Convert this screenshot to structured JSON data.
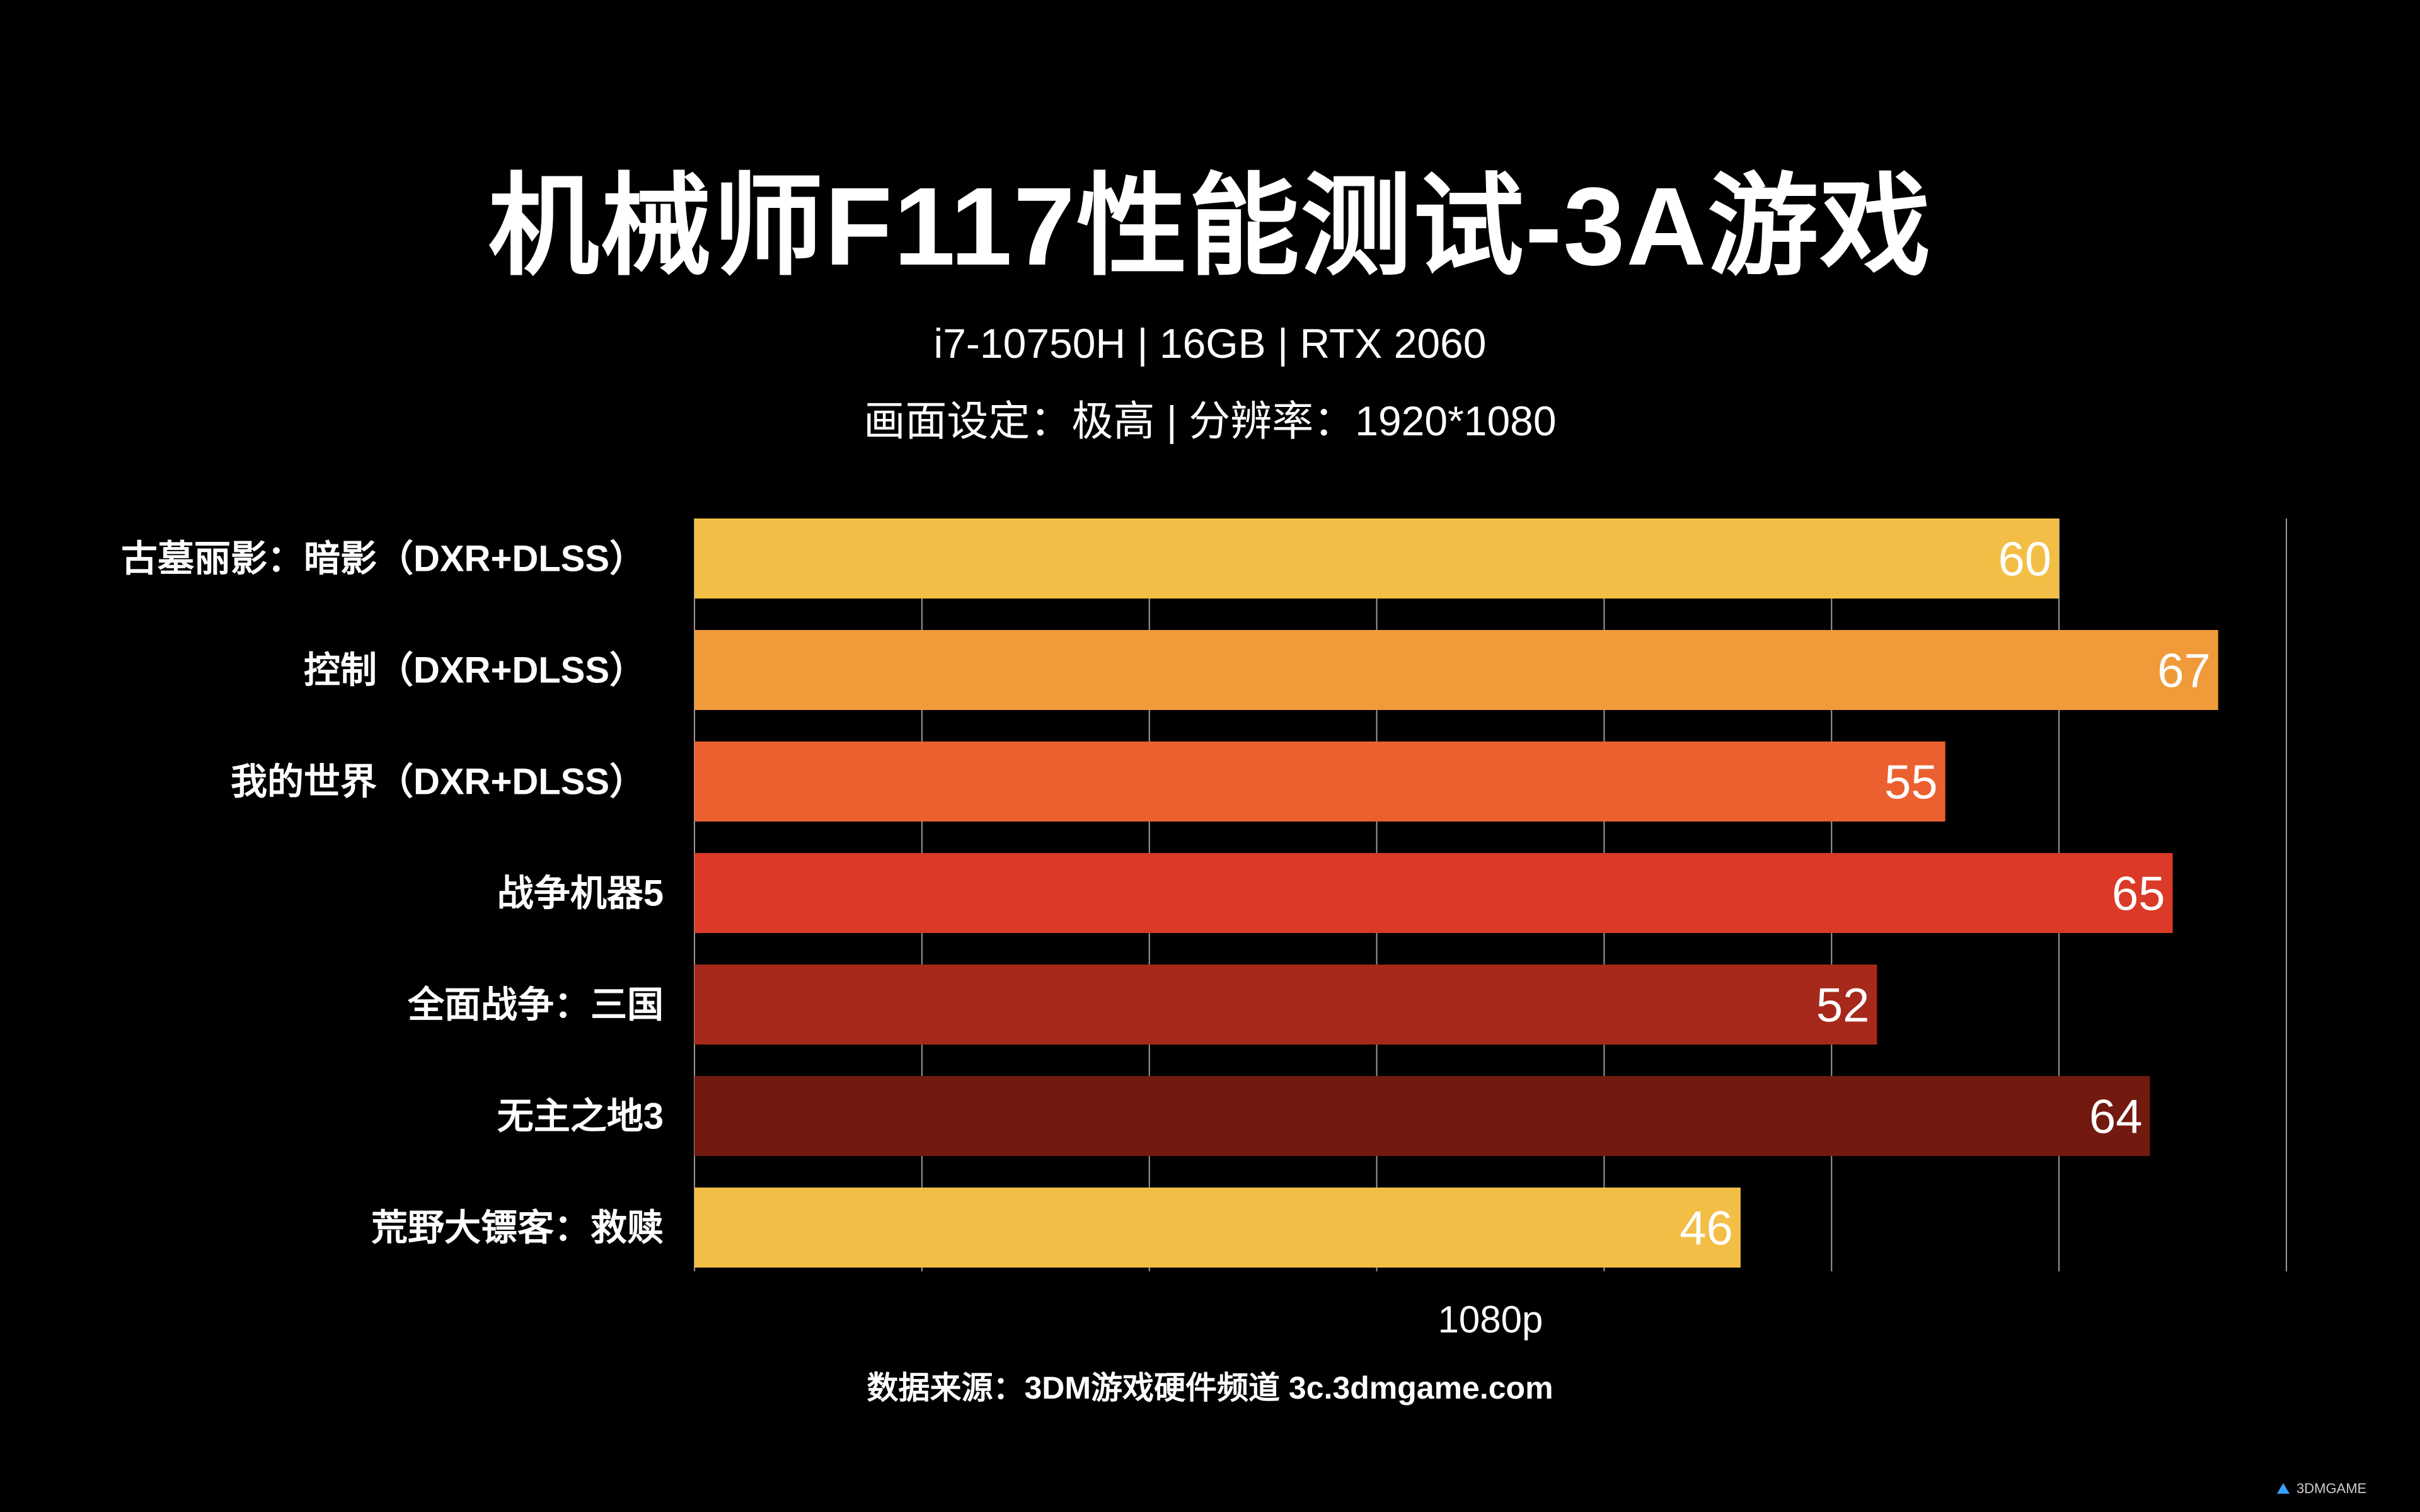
{
  "title": "机械师F117性能测试-3A游戏",
  "subtitle_hardware": "i7-10750H | 16GB | RTX 2060",
  "subtitle_settings": "画面设定：极高 | 分辨率：1920*1080",
  "source": "数据来源：3DM游戏硬件频道 3c.3dmgame.com",
  "watermark": "3DMGAME",
  "chart_data": {
    "type": "bar",
    "orientation": "horizontal",
    "title": "机械师F117性能测试-3A游戏",
    "xlabel": "1080p",
    "ylabel": "",
    "xlim": [
      0,
      70
    ],
    "grid": true,
    "categories": [
      "古墓丽影：暗影（DXR+DLSS）",
      "控制（DXR+DLSS）",
      "我的世界（DXR+DLSS）",
      "战争机器5",
      "全面战争：三国",
      "无主之地3",
      "荒野大镖客：救赎"
    ],
    "values": [
      60,
      67,
      55,
      65,
      52,
      64,
      46
    ],
    "colors": [
      "#F2BE45",
      "#F09A3A",
      "#EC6030",
      "#DA3A27",
      "#A6291B",
      "#721A10",
      "#F2BE45"
    ],
    "value_labels": [
      "60",
      "67",
      "55",
      "65",
      "52",
      "64",
      "46"
    ]
  }
}
